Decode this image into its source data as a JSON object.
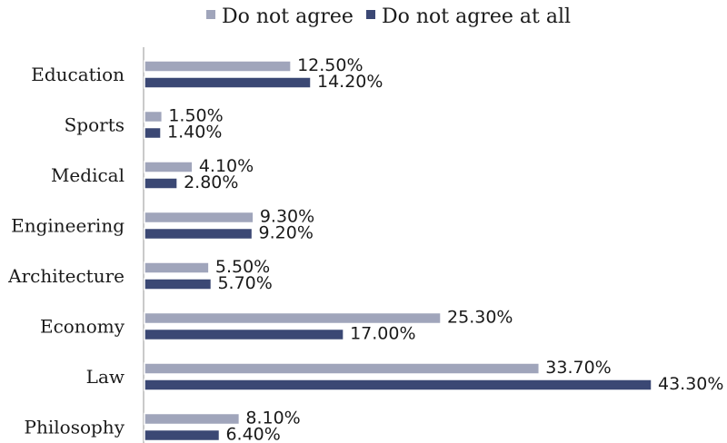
{
  "chart_data": {
    "type": "bar",
    "orientation": "horizontal",
    "categories": [
      "Education",
      "Sports",
      "Medical",
      "Engineering",
      "Architecture",
      "Economy",
      "Law",
      "Philosophy"
    ],
    "series": [
      {
        "name": "Do not agree",
        "color": "#a0a5bb",
        "values": [
          12.5,
          1.5,
          4.1,
          9.3,
          5.5,
          25.3,
          33.7,
          8.1
        ],
        "labels": [
          "12.50%",
          "1.50%",
          "4.10%",
          "9.30%",
          "5.50%",
          "25.30%",
          "33.70%",
          "8.10%"
        ]
      },
      {
        "name": "Do not agree at all",
        "color": "#3b4874",
        "values": [
          14.2,
          1.4,
          2.8,
          9.2,
          5.7,
          17.0,
          43.3,
          6.4
        ],
        "labels": [
          "14.20%",
          "1.40%",
          "2.80%",
          "9.20%",
          "5.70%",
          "17.00%",
          "43.30%",
          "6.40%"
        ]
      }
    ],
    "xlim": [
      0,
      43.3
    ],
    "legend_position": "top",
    "grid": false,
    "axis_color": "#b8b8b8"
  }
}
